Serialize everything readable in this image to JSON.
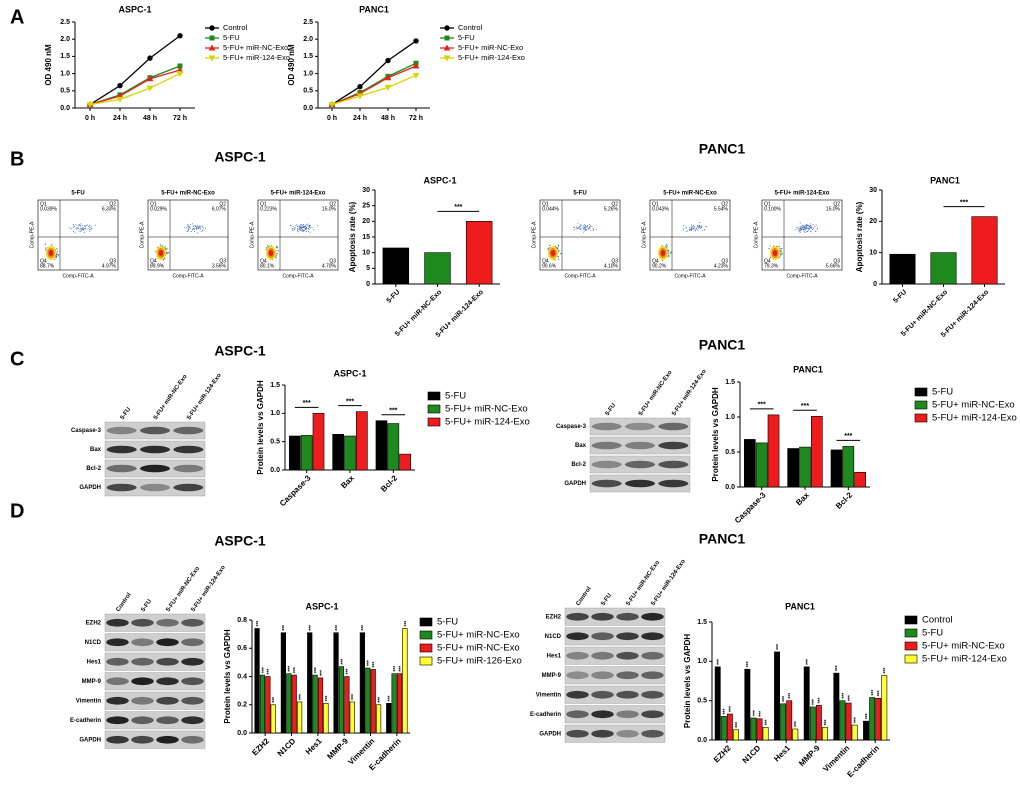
{
  "panels": [
    "A",
    "B",
    "C",
    "D"
  ],
  "headings": [
    "ASPC-1",
    "PANC1",
    "ASPC-1",
    "PANC1",
    "ASPC-1",
    "PANC1"
  ],
  "chart_data": [
    {
      "type": "line",
      "title": "ASPC-1",
      "y_label": "OD 490 nM",
      "categories": [
        "0 h",
        "24 h",
        "48 h",
        "72 h"
      ],
      "ylim": [
        0,
        2.5
      ],
      "yticks": [
        {
          "value": 0,
          "label": "0.0"
        },
        0.5,
        {
          "value": 1,
          "label": "1.0"
        },
        1.5,
        {
          "value": 2,
          "label": "2.0"
        },
        2.5
      ],
      "series": [
        {
          "name": "Control",
          "color": "#000000",
          "values": [
            0.1,
            0.65,
            1.45,
            2.1
          ]
        },
        {
          "name": "5-FU",
          "color": "#1e8a1e",
          "values": [
            0.1,
            0.38,
            0.88,
            1.22
          ]
        },
        {
          "name": "5-FU+ miR-NC-Exo",
          "color": "#e8221b",
          "values": [
            0.1,
            0.35,
            0.85,
            1.1
          ]
        },
        {
          "name": "5-FU+ miR-124-Exo",
          "color": "#d6d600",
          "values": [
            0.1,
            0.25,
            0.58,
            1.0
          ]
        }
      ]
    },
    {
      "type": "line",
      "title": "PANC1",
      "y_label": "OD 490 nM",
      "categories": [
        "0 h",
        "24 h",
        "48 h",
        "72 h"
      ],
      "ylim": [
        0,
        2.5
      ],
      "yticks": [
        {
          "value": 0,
          "label": "0.0"
        },
        0.5,
        {
          "value": 1,
          "label": "1.0"
        },
        1.5,
        {
          "value": 2,
          "label": "2.0"
        },
        2.5
      ],
      "series": [
        {
          "name": "Control",
          "color": "#000000",
          "values": [
            0.1,
            0.62,
            1.38,
            1.95
          ]
        },
        {
          "name": "5-FU",
          "color": "#1e8a1e",
          "values": [
            0.1,
            0.45,
            0.92,
            1.3
          ]
        },
        {
          "name": "5-FU+ miR-NC-Exo",
          "color": "#e8221b",
          "values": [
            0.1,
            0.42,
            0.88,
            1.22
          ]
        },
        {
          "name": "5-FU+ miR-124-Exo",
          "color": "#d6d600",
          "values": [
            0.1,
            0.35,
            0.6,
            0.95
          ]
        }
      ]
    },
    {
      "type": "bar",
      "title": "ASPC-1",
      "y_label": "Apoptosis rate (%)",
      "significance": "***",
      "categories": [
        "5-FU",
        "5-FU+ miR-NC-Exo",
        "5-FU+ miR-124-Exo"
      ],
      "values": [
        11.5,
        10,
        20
      ],
      "colors": [
        "#000000",
        "#1e8a1e",
        "#ee1c1c"
      ],
      "ylim": [
        0,
        30
      ],
      "yticks": [
        0,
        5,
        10,
        15,
        20,
        25,
        30
      ]
    },
    {
      "type": "bar",
      "title": "PANC1",
      "y_label": "Apoptosis rate (%)",
      "significance": "***",
      "categories": [
        "5-FU",
        "5-FU+ miR-NC-Exo",
        "5-FU+ miR-124-Exo"
      ],
      "values": [
        9.5,
        10,
        21.5
      ],
      "colors": [
        "#000000",
        "#1e8a1e",
        "#ee1c1c"
      ],
      "ylim": [
        0,
        30
      ],
      "yticks": [
        0,
        10,
        20,
        30
      ]
    },
    {
      "type": "bar",
      "title": "ASPC-1",
      "y_label": "Protein levels vs GAPDH",
      "significance": "***",
      "categories": [
        "Caspase-3",
        "Bax",
        "Bcl-2"
      ],
      "ylim": [
        0,
        1.5
      ],
      "yticks": [
        {
          "value": 0,
          "label": "0.0"
        },
        0.5,
        {
          "value": 1,
          "label": "1.0"
        },
        1.5
      ],
      "series": [
        {
          "name": "5-FU",
          "color": "#000000",
          "values": [
            0.6,
            0.63,
            0.87
          ]
        },
        {
          "name": "5-FU+ miR-NC-Exo",
          "color": "#1e8a1e",
          "values": [
            0.61,
            0.6,
            0.82
          ]
        },
        {
          "name": "5-FU+ miR-124-Exo",
          "color": "#ee1c1c",
          "values": [
            1.0,
            1.03,
            0.28
          ]
        }
      ]
    },
    {
      "type": "bar",
      "title": "PANC1",
      "y_label": "Protein levels vs GAPDH",
      "significance": "***",
      "categories": [
        "Caspase-3",
        "Bax",
        "Bcl-2"
      ],
      "ylim": [
        0,
        1.5
      ],
      "yticks": [
        {
          "value": 0,
          "label": "0.0"
        },
        0.5,
        {
          "value": 1,
          "label": "1.0"
        },
        1.5
      ],
      "series": [
        {
          "name": "5-FU",
          "color": "#000000",
          "values": [
            0.68,
            0.55,
            0.53
          ]
        },
        {
          "name": "5-FU+ miR-NC-Exo",
          "color": "#1e8a1e",
          "values": [
            0.63,
            0.57,
            0.58
          ]
        },
        {
          "name": "5-FU+ miR-124-Exo",
          "color": "#ee1c1c",
          "values": [
            1.03,
            1.01,
            0.21
          ]
        }
      ]
    },
    {
      "type": "bar",
      "title": "ASPC-1",
      "y_label": "Protein levels vs GAPDH",
      "significance": "***",
      "categories": [
        "EZH2",
        "N1CD",
        "Hes1",
        "MMP-9",
        "Vimentin",
        "E-cadherin"
      ],
      "ylim": [
        0,
        0.8
      ],
      "yticks": [
        {
          "value": 0,
          "label": "0.0"
        },
        0.2,
        0.4,
        0.6,
        0.8
      ],
      "series": [
        {
          "name": "5-FU",
          "color": "#000000",
          "values": [
            0.74,
            0.71,
            0.71,
            0.71,
            0.71,
            0.21
          ]
        },
        {
          "name": "5-FU+ miR-NC-Exo",
          "color": "#1e8a1e",
          "values": [
            0.41,
            0.42,
            0.41,
            0.47,
            0.46,
            0.42
          ]
        },
        {
          "name": "5-FU+ miR-NC-Exo",
          "color": "#ee1c1c",
          "values": [
            0.4,
            0.41,
            0.39,
            0.4,
            0.45,
            0.42
          ]
        },
        {
          "name": "5-FU+ miR-126-Exo",
          "color": "#ffff33",
          "values": [
            0.2,
            0.22,
            0.21,
            0.22,
            0.2,
            0.74
          ]
        }
      ]
    },
    {
      "type": "bar",
      "title": "PANC1",
      "y_label": "Protein levels vs GAPDH",
      "significance": "***",
      "categories": [
        "EZH2",
        "N1CD",
        "Hes1",
        "MMP-9",
        "Vimentin",
        "E-cadherin"
      ],
      "ylim": [
        0,
        1.5
      ],
      "yticks": [
        {
          "value": 0,
          "label": "0.0"
        },
        0.5,
        {
          "value": 1,
          "label": "1.0"
        },
        1.5
      ],
      "series": [
        {
          "name": "Control",
          "color": "#000000",
          "values": [
            0.93,
            0.9,
            1.12,
            0.93,
            0.85,
            0.24
          ]
        },
        {
          "name": "5-FU",
          "color": "#1e8a1e",
          "values": [
            0.3,
            0.28,
            0.46,
            0.42,
            0.5,
            0.54
          ]
        },
        {
          "name": "5-FU+ miR-NC-Exo",
          "color": "#ee1c1c",
          "values": [
            0.33,
            0.27,
            0.5,
            0.44,
            0.47,
            0.53
          ]
        },
        {
          "name": "5-FU+ miR-124-Exo",
          "color": "#ffff33",
          "values": [
            0.13,
            0.16,
            0.14,
            0.16,
            0.19,
            0.82
          ]
        }
      ]
    }
  ],
  "flow": {
    "x_label": "Comp-FITC-A",
    "y_label": "Comp-PE-A",
    "quadrants": [
      "Q1",
      "Q2",
      "Q3",
      "Q4"
    ],
    "plots": [
      {
        "title": "5-FU",
        "percents": [
          "0.039%",
          "6.33%",
          "4.97%",
          "88.7%"
        ]
      },
      {
        "title": "5-FU+ miR-NC-Exo",
        "percents": [
          "0.029%",
          "6.07%",
          "3.56%",
          "89.9%"
        ]
      },
      {
        "title": "5-FU+ miR-124-Exo",
        "percents": [
          "0.223%",
          "15.0%",
          "4.70%",
          "80.1%"
        ]
      },
      {
        "title": "5-FU",
        "percents": [
          "0.044%",
          "5.26%",
          "4.10%",
          "90.6%"
        ]
      },
      {
        "title": "5-FU+ miR-NC-Exo",
        "percents": [
          "0.043%",
          "5.54%",
          "4.23%",
          "90.2%"
        ]
      },
      {
        "title": "5-FU+ miR-124-Exo",
        "percents": [
          "0.100%",
          "15.0%",
          "5.66%",
          "79.3%"
        ]
      }
    ]
  },
  "blots": [
    {
      "lanes": [
        "5-FU",
        "5-FU+ miR-NC-Exo",
        "5-FU+ miR-124-Exo"
      ],
      "rows": [
        "Caspase-3",
        "Bax",
        "Bcl-2",
        "GAPDH"
      ]
    },
    {
      "lanes": [
        "5-FU",
        "5-FU+ miR-NC-Exo",
        "5-FU+ miR-124-Exo"
      ],
      "rows": [
        "Caspase-3",
        "Bax",
        "Bcl-2",
        "GAPDH"
      ]
    },
    {
      "lanes": [
        "Control",
        "5-FU",
        "5-FU+ miR-NC-Exo",
        "5-FU+ miR-124-Exo"
      ],
      "rows": [
        "EZH2",
        "N1CD",
        "Hes1",
        "MMP-9",
        "Vimentin",
        "E-cadherin",
        "GAPDH"
      ]
    },
    {
      "lanes": [
        "Control",
        "5-FU",
        "5-FU+ miR-NC-Exo",
        "5-FU+ miR-124-Exo"
      ],
      "rows": [
        "EZH2",
        "N1CD",
        "Hes1",
        "MMP-9",
        "Vimentin",
        "E-cadherin",
        "GAPDH"
      ]
    }
  ]
}
